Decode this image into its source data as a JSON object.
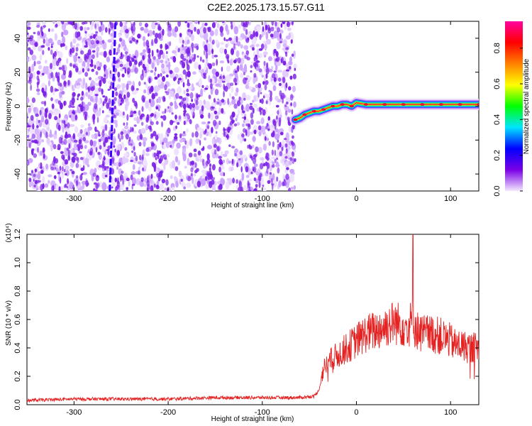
{
  "title": "C2E2.2025.173.15.57.G11",
  "chart_data": [
    {
      "type": "heatmap",
      "xlabel": "Height of straight line (km)",
      "ylabel": "Frequency (Hz)",
      "xlim": [
        -350,
        130
      ],
      "ylim": [
        -50,
        50
      ],
      "x_ticks": [
        -300,
        -200,
        -100,
        0,
        100
      ],
      "y_ticks": [
        -40,
        -20,
        0,
        20,
        40
      ],
      "colorbar": {
        "label": "Normalized spectral amplitude",
        "ticks": [
          "0.0",
          "0.2",
          "0.4",
          "0.6",
          "0.8"
        ],
        "range": [
          0,
          0.95
        ],
        "colors": [
          "#f4e8ff",
          "#7a00e6",
          "#0000ff",
          "#00e5ff",
          "#00ff00",
          "#ffff00",
          "#ff8000",
          "#ff0000",
          "#ff00a0"
        ]
      },
      "noise_region": {
        "x_range": [
          -350,
          -65
        ],
        "color": "#7b1fe6"
      },
      "streak": {
        "x": [
          -262,
          -256
        ],
        "y": [
          -50,
          50
        ]
      },
      "ridge": {
        "x": [
          -65,
          -60,
          -55,
          -50,
          -45,
          -40,
          -35,
          -30,
          -25,
          -20,
          -15,
          -10,
          -5,
          0,
          10,
          20,
          30,
          40,
          50,
          60,
          70,
          80,
          90,
          100,
          110,
          120,
          130
        ],
        "y": [
          -8,
          -7,
          -5,
          -4,
          -3,
          -3,
          -2,
          -1,
          0,
          0,
          1,
          1,
          0,
          2,
          1,
          1,
          1,
          1,
          1,
          1,
          1,
          1,
          1,
          1,
          1,
          1,
          1
        ]
      }
    },
    {
      "type": "line",
      "xlabel": "Height of straight line (km)",
      "ylabel": "SNR (10 * v/v)",
      "multiplier": "(x10⁴)",
      "xlim": [
        -350,
        130
      ],
      "ylim": [
        0,
        1.2
      ],
      "x_ticks": [
        -300,
        -200,
        -100,
        0,
        100
      ],
      "y_ticks": [
        "0.0",
        "0.2",
        "0.4",
        "0.6",
        "0.8",
        "1.0",
        "1.2"
      ],
      "color": "#e52222",
      "series": [
        {
          "x": [
            -350,
            -300,
            -250,
            -200,
            -150,
            -100,
            -60,
            -45,
            -40,
            -35,
            -30,
            -20,
            -10,
            0,
            10,
            20,
            30,
            40,
            50,
            55,
            60,
            62,
            65,
            70,
            80,
            90,
            100,
            105,
            110,
            120,
            130
          ],
          "values": [
            0.03,
            0.04,
            0.04,
            0.04,
            0.05,
            0.05,
            0.05,
            0.06,
            0.1,
            0.25,
            0.3,
            0.35,
            0.4,
            0.45,
            0.5,
            0.52,
            0.55,
            0.58,
            0.56,
            0.55,
            0.6,
            0.55,
            0.52,
            0.5,
            0.5,
            0.48,
            0.45,
            0.42,
            0.42,
            0.4,
            0.4
          ]
        }
      ]
    }
  ]
}
